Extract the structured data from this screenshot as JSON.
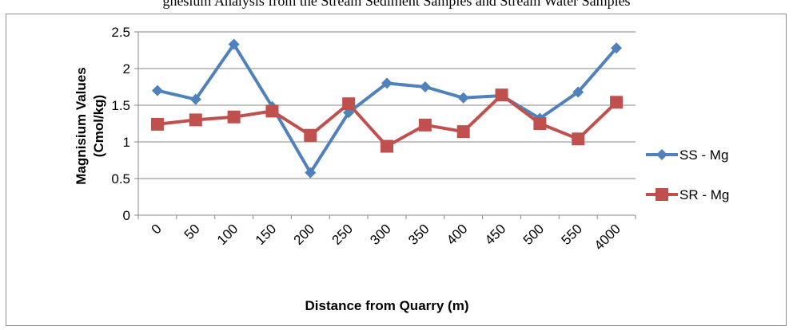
{
  "top_text": "gnesium Analysis from the Stream Sediment Samples and Stream Water Samples",
  "chart_data": {
    "type": "line",
    "title": "",
    "xlabel": "Distance from Quarry (m)",
    "ylabel_line1": "Magnisium Values",
    "ylabel_line2": "(Cmol/kg)",
    "categories": [
      "0",
      "50",
      "100",
      "150",
      "200",
      "250",
      "300",
      "350",
      "400",
      "450",
      "500",
      "550",
      "4000"
    ],
    "ylim": [
      0,
      2.5
    ],
    "yticks": [
      "0",
      "0.5",
      "1",
      "1.5",
      "2",
      "2.5"
    ],
    "grid": true,
    "legend_position": "right",
    "series": [
      {
        "name": "SS - Mg",
        "color": "#4f81bd",
        "marker": "diamond",
        "values": [
          1.7,
          1.58,
          2.33,
          1.48,
          0.58,
          1.4,
          1.8,
          1.75,
          1.6,
          1.63,
          1.32,
          1.68,
          2.28
        ]
      },
      {
        "name": "SR - Mg",
        "color": "#c0504d",
        "marker": "square",
        "values": [
          1.24,
          1.3,
          1.34,
          1.42,
          1.09,
          1.52,
          0.94,
          1.23,
          1.14,
          1.64,
          1.25,
          1.04,
          1.54
        ]
      }
    ]
  }
}
